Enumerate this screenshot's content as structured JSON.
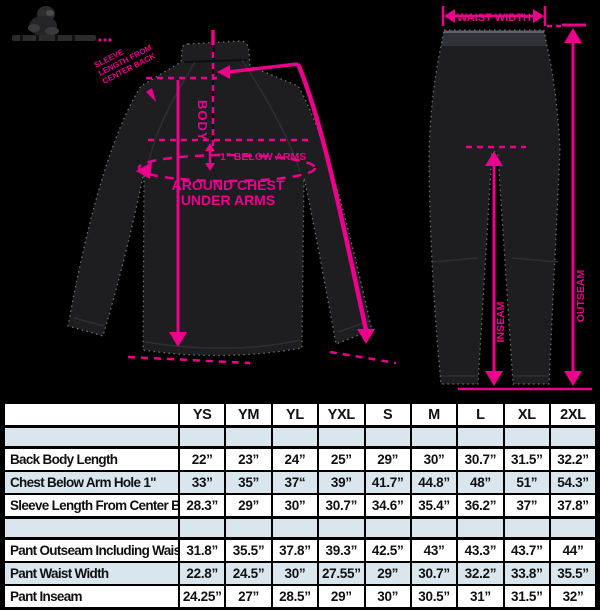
{
  "accent_color": "#ec008c",
  "table_shade_color": "#d9e6ee",
  "jacket_labels": {
    "body": "BODY",
    "below_arms": "1\" BELOW ARMS",
    "around_chest_1": "AROUND CHEST",
    "around_chest_2": "UNDER ARMS",
    "sleeve_note_1": "SLEEVE",
    "sleeve_note_2": "LENGTH FROM",
    "sleeve_note_3": "CENTER BACK"
  },
  "pants_labels": {
    "waist": "WAIST WIDTH",
    "outseam": "OUTSEAM",
    "inseam": "INSEAM"
  },
  "table": {
    "columns": [
      "YS",
      "YM",
      "YL",
      "YXL",
      "S",
      "M",
      "L",
      "XL",
      "2XL"
    ],
    "groups": [
      {
        "rows": [
          {
            "label": "Back Body Length",
            "values": [
              "22”",
              "23”",
              "24”",
              "25”",
              "29”",
              "30”",
              "30.7”",
              "31.5”",
              "32.2”"
            ]
          },
          {
            "label": "Chest Below Arm Hole 1\"",
            "values": [
              "33”",
              "35”",
              "37“",
              "39”",
              "41.7”",
              "44.8”",
              "48”",
              "51”",
              "54.3”"
            ]
          },
          {
            "label": "Sleeve Length From Center Back",
            "values": [
              "28.3”",
              "29”",
              "30”",
              "30.7”",
              "34.6”",
              "35.4”",
              "36.2”",
              "37”",
              "37.8”"
            ]
          }
        ]
      },
      {
        "rows": [
          {
            "label": "Pant Outseam Including Waist",
            "values": [
              "31.8”",
              "35.5”",
              "37.8”",
              "39.3”",
              "42.5”",
              "43”",
              "43.3”",
              "43.7”",
              "44”"
            ]
          },
          {
            "label": "Pant Waist Width",
            "values": [
              "22.8”",
              "24.5”",
              "30”",
              "27.55”",
              "29”",
              "30.7”",
              "32.2”",
              "33.8”",
              "35.5”"
            ]
          },
          {
            "label": "Pant Inseam",
            "values": [
              "24.25”",
              "27”",
              "28.5”",
              "29”",
              "30”",
              "30.5”",
              "31”",
              "31.5”",
              "32”"
            ]
          }
        ]
      }
    ]
  }
}
